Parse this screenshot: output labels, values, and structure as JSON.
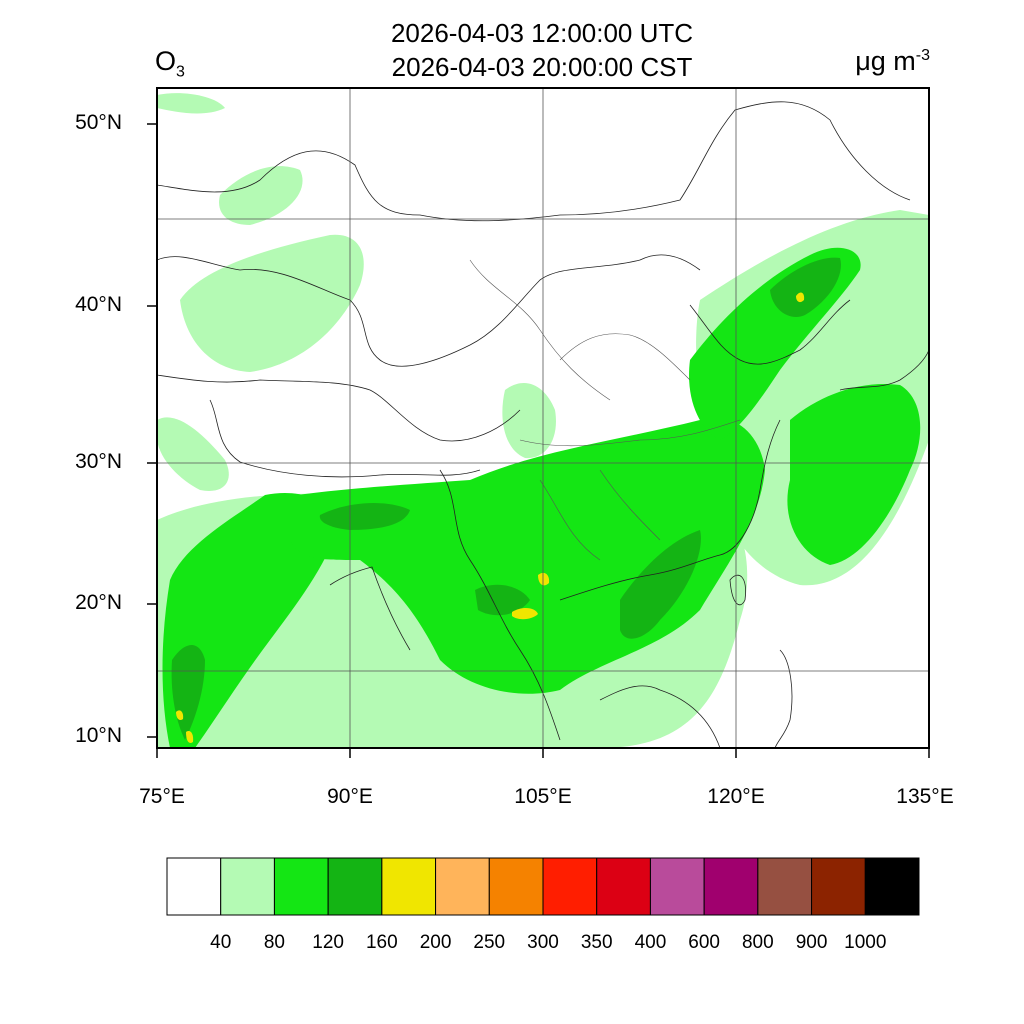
{
  "header": {
    "variable_main": "O",
    "variable_sub": "3",
    "time_utc": "2026-04-03 12:00:00 UTC",
    "time_local": "2026-04-03 20:00:00 CST",
    "units_main": "μg m",
    "units_sup": "-3"
  },
  "map": {
    "lon_labels": [
      "75°E",
      "90°E",
      "105°E",
      "120°E",
      "135°E"
    ],
    "lat_labels": [
      "50°N",
      "40°N",
      "30°N",
      "20°N",
      "10°N"
    ],
    "lon_range": [
      75,
      135
    ],
    "lat_range": [
      9,
      52
    ]
  },
  "colorbar": {
    "colors": [
      "#ffffff",
      "#b4fab4",
      "#14e614",
      "#14b414",
      "#f0e600",
      "#ffb45a",
      "#f58200",
      "#ff1e00",
      "#dc0014",
      "#b94b9b",
      "#a0006e",
      "#965041",
      "#8c2300",
      "#000000"
    ],
    "labels": [
      "40",
      "80",
      "120",
      "160",
      "200",
      "250",
      "300",
      "350",
      "400",
      "600",
      "800",
      "900",
      "1000"
    ]
  }
}
